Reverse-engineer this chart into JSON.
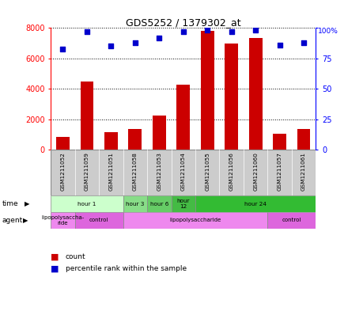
{
  "title": "GDS5252 / 1379302_at",
  "samples": [
    "GSM1211052",
    "GSM1211059",
    "GSM1211051",
    "GSM1211058",
    "GSM1211053",
    "GSM1211054",
    "GSM1211055",
    "GSM1211056",
    "GSM1211060",
    "GSM1211057",
    "GSM1211061"
  ],
  "counts": [
    850,
    4500,
    1150,
    1350,
    2250,
    4300,
    7800,
    7000,
    7350,
    1050,
    1350
  ],
  "percentiles": [
    83,
    97,
    85,
    88,
    92,
    97,
    98,
    97,
    98,
    86,
    88
  ],
  "ylim_left": [
    0,
    8000
  ],
  "ylim_right": [
    0,
    100
  ],
  "yticks_left": [
    0,
    2000,
    4000,
    6000,
    8000
  ],
  "yticks_right": [
    0,
    25,
    50,
    75,
    100
  ],
  "bar_color": "#cc0000",
  "scatter_color": "#0000cc",
  "time_groups": [
    {
      "label": "hour 1",
      "start": 0,
      "end": 3,
      "color": "#ccffcc"
    },
    {
      "label": "hour 3",
      "start": 3,
      "end": 4,
      "color": "#88dd88"
    },
    {
      "label": "hour 6",
      "start": 4,
      "end": 5,
      "color": "#66cc66"
    },
    {
      "label": "hour\n12",
      "start": 5,
      "end": 6,
      "color": "#44bb44"
    },
    {
      "label": "hour 24",
      "start": 6,
      "end": 11,
      "color": "#33bb33"
    }
  ],
  "agent_groups": [
    {
      "label": "lipopolysaccha-\nride",
      "start": 0,
      "end": 1,
      "color": "#ee88ee"
    },
    {
      "label": "control",
      "start": 1,
      "end": 3,
      "color": "#dd66dd"
    },
    {
      "label": "lipopolysaccharide",
      "start": 3,
      "end": 9,
      "color": "#ee88ee"
    },
    {
      "label": "control",
      "start": 9,
      "end": 11,
      "color": "#dd66dd"
    }
  ],
  "time_label": "time",
  "agent_label": "agent",
  "legend_bar_label": "count",
  "legend_scatter_label": "percentile rank within the sample",
  "background_color": "#ffffff",
  "sample_bg_color": "#cccccc"
}
